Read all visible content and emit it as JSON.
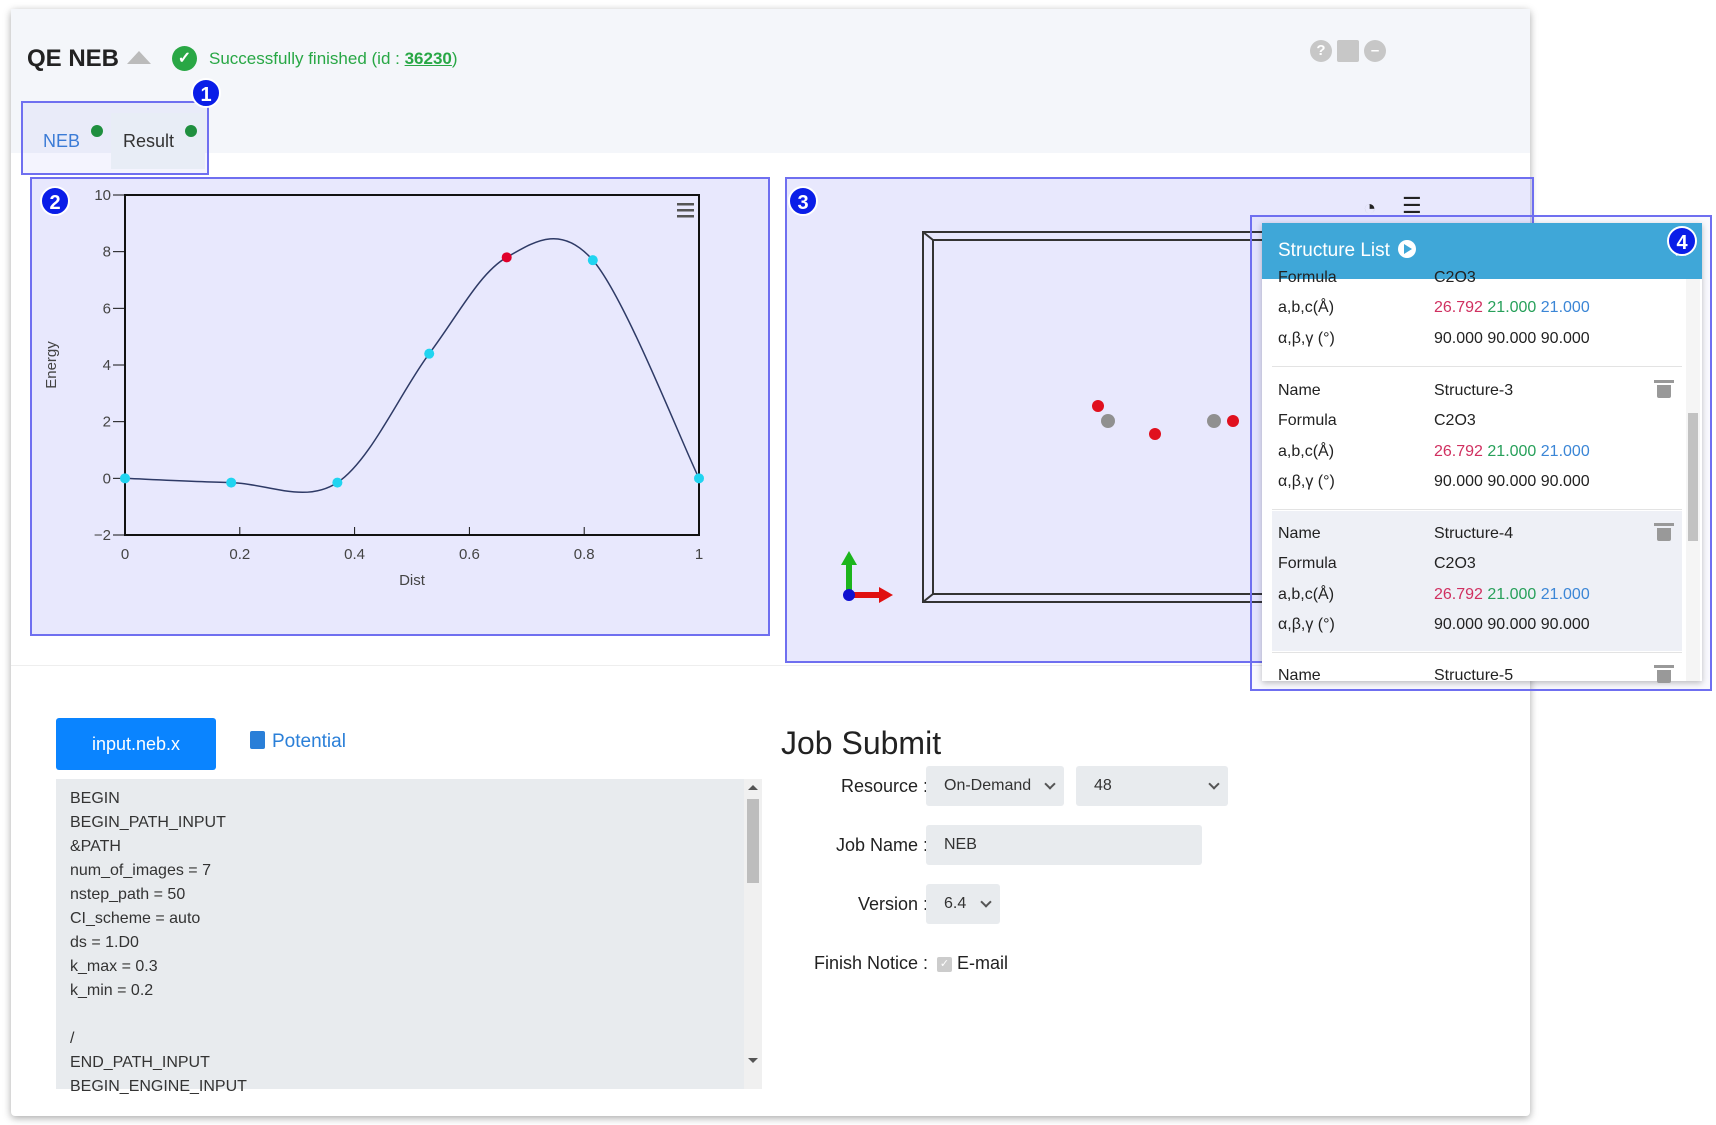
{
  "header": {
    "title": "QE NEB",
    "status_text": "Successfully finished (id : ",
    "job_id": "36230",
    "status_close": ")",
    "icons": [
      "help-icon",
      "note-icon",
      "minimize-icon"
    ]
  },
  "markers": [
    "1",
    "2",
    "3",
    "4"
  ],
  "tabs": [
    {
      "label": "NEB",
      "active": true
    },
    {
      "label": "Result",
      "active": false
    }
  ],
  "chart_data": {
    "type": "line",
    "xlabel": "Dist",
    "ylabel": "Energy",
    "xlim": [
      0,
      1
    ],
    "ylim": [
      -2,
      10
    ],
    "x_ticks": [
      "0",
      "0.2",
      "0.4",
      "0.6",
      "0.8",
      "1"
    ],
    "y_ticks": [
      "−2",
      "0",
      "2",
      "4",
      "6",
      "8",
      "10"
    ],
    "grid": false,
    "series": [
      {
        "points": [
          {
            "x": 0.0,
            "y": 0.0
          },
          {
            "x": 0.185,
            "y": -0.15
          },
          {
            "x": 0.37,
            "y": -0.15
          },
          {
            "x": 0.53,
            "y": 4.4
          },
          {
            "x": 0.665,
            "y": 7.8
          },
          {
            "x": 0.815,
            "y": 7.7
          },
          {
            "x": 1.0,
            "y": 0.0
          }
        ],
        "highlight_index": 4,
        "point_color": "#20d4f0",
        "highlight_color": "#e0002a",
        "line_color": "#2e3a66"
      }
    ]
  },
  "viewer": {
    "icons": [
      "select-icon",
      "list-icon"
    ],
    "atom_colors": {
      "oxygen": "#e0101e",
      "carbon": "#909090"
    }
  },
  "structure_list": {
    "title": "Structure List",
    "close_icon": "close-icon",
    "labels": {
      "name": "Name",
      "formula": "Formula",
      "abc": "a,b,c(Å)",
      "angles": "α,β,γ (°)"
    },
    "partial_formula": "C2O3",
    "partial_abc": [
      "26.792",
      "21.000",
      "21.000"
    ],
    "partial_angles": "90.000 90.000 90.000",
    "items": [
      {
        "name": "Structure-3",
        "formula": "C2O3",
        "a": "26.792",
        "b": "21.000",
        "c": "21.000",
        "angles": "90.000 90.000 90.000"
      },
      {
        "name": "Structure-4",
        "formula": "C2O3",
        "a": "26.792",
        "b": "21.000",
        "c": "21.000",
        "angles": "90.000 90.000 90.000"
      },
      {
        "name": "Structure-5"
      }
    ]
  },
  "editor": {
    "file_tab": "input.neb.x",
    "potential_link": "Potential",
    "lines": [
      "BEGIN",
      "BEGIN_PATH_INPUT",
      "&PATH",
      "num_of_images = 7",
      "nstep_path = 50",
      "CI_scheme = auto",
      "ds = 1.D0",
      "k_max = 0.3",
      "k_min = 0.2",
      "",
      "/",
      "END_PATH_INPUT",
      "BEGIN_ENGINE_INPUT"
    ]
  },
  "job_submit": {
    "title": "Job Submit",
    "resource_label": "Resource :",
    "resource_value": "On-Demand",
    "cores_value": "48",
    "job_name_label": "Job Name :",
    "job_name_value": "NEB",
    "version_label": "Version :",
    "version_value": "6.4",
    "finish_notice_label": "Finish Notice :",
    "email_label": "E-mail"
  }
}
